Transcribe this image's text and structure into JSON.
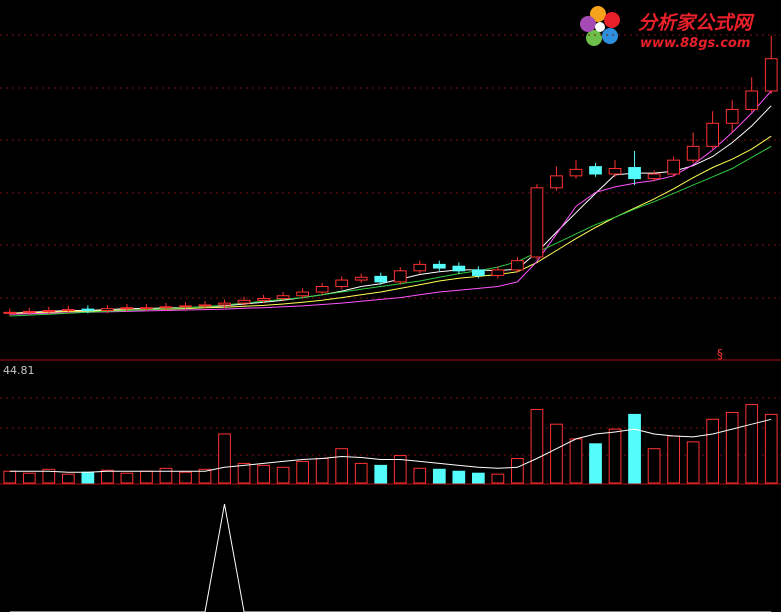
{
  "header": {
    "site": "分析家公式网",
    "url": "www.88gs.com"
  },
  "chart_data": [
    {
      "type": "candlestick",
      "annotation": "§",
      "ylim": [
        0,
        36
      ],
      "grid": true,
      "up_color": "#ff3232",
      "down_color": "#54fcfc",
      "open": [
        2.9,
        3.0,
        3.1,
        3.2,
        3.35,
        3.2,
        3.4,
        3.45,
        3.5,
        3.6,
        3.7,
        3.8,
        4.0,
        4.3,
        4.5,
        4.8,
        5.2,
        5.8,
        6.5,
        6.9,
        6.3,
        7.5,
        8.2,
        8.0,
        7.6,
        7.0,
        7.6,
        9.0,
        16.5,
        17.8,
        18.8,
        18.0,
        18.7,
        17.5,
        18.0,
        19.5,
        21.0,
        23.5,
        25.0,
        27.0
      ],
      "high": [
        3.4,
        3.5,
        3.6,
        3.7,
        3.75,
        3.8,
        3.9,
        3.9,
        4.0,
        4.1,
        4.2,
        4.4,
        4.7,
        4.9,
        5.2,
        5.6,
        6.2,
        6.9,
        7.2,
        7.3,
        7.9,
        8.6,
        8.6,
        8.4,
        8.0,
        8.0,
        9.0,
        16.9,
        18.8,
        19.5,
        19.2,
        19.5,
        20.5,
        18.4,
        19.9,
        22.5,
        24.8,
        26.0,
        28.5,
        33.0
      ],
      "low": [
        2.6,
        2.7,
        2.8,
        2.9,
        2.9,
        2.9,
        3.1,
        3.15,
        3.2,
        3.3,
        3.4,
        3.5,
        3.7,
        4.0,
        4.2,
        4.5,
        4.9,
        5.5,
        6.2,
        6.0,
        6.0,
        7.2,
        7.5,
        7.2,
        6.7,
        6.7,
        7.3,
        8.7,
        16.2,
        17.5,
        17.7,
        17.7,
        16.8,
        17.2,
        17.7,
        19.2,
        20.7,
        22.5,
        24.7,
        26.7
      ],
      "close": [
        3.0,
        3.1,
        3.2,
        3.3,
        3.2,
        3.4,
        3.5,
        3.5,
        3.6,
        3.7,
        3.8,
        4.0,
        4.3,
        4.5,
        4.8,
        5.2,
        5.8,
        6.5,
        6.8,
        6.3,
        7.5,
        8.2,
        7.8,
        7.5,
        7.0,
        7.6,
        8.6,
        16.5,
        17.8,
        18.5,
        18.0,
        18.6,
        17.5,
        18.0,
        19.5,
        21.0,
        23.5,
        25.0,
        27.0,
        30.5
      ],
      "series": [
        {
          "color": "#ffffff",
          "values": [
            2.9,
            3.0,
            3.1,
            3.2,
            3.2,
            3.3,
            3.4,
            3.4,
            3.5,
            3.5,
            3.6,
            3.7,
            3.9,
            4.1,
            4.3,
            4.6,
            4.9,
            5.3,
            5.8,
            6.1,
            6.6,
            7.1,
            7.4,
            7.6,
            7.6,
            7.5,
            7.7,
            9.5,
            11.7,
            13.8,
            15.9,
            17.9,
            18.1,
            18.1,
            18.3,
            18.9,
            19.9,
            21.4,
            23.2,
            25.4
          ]
        },
        {
          "color": "#ffff54",
          "values": [
            2.9,
            2.95,
            3.0,
            3.1,
            3.1,
            3.2,
            3.25,
            3.3,
            3.35,
            3.4,
            3.5,
            3.55,
            3.65,
            3.75,
            3.9,
            4.1,
            4.3,
            4.6,
            4.9,
            5.2,
            5.6,
            6.0,
            6.4,
            6.7,
            6.9,
            7.1,
            7.4,
            8.4,
            9.7,
            11.0,
            12.2,
            13.3,
            14.3,
            15.3,
            16.4,
            17.6,
            18.7,
            19.6,
            20.7,
            22.1
          ]
        },
        {
          "color": "#ff54ff",
          "values": [
            2.8,
            2.85,
            2.9,
            2.95,
            3.0,
            3.05,
            3.1,
            3.15,
            3.2,
            3.25,
            3.3,
            3.35,
            3.45,
            3.5,
            3.6,
            3.7,
            3.85,
            4.0,
            4.2,
            4.4,
            4.6,
            4.9,
            5.2,
            5.4,
            5.6,
            5.8,
            6.3,
            8.5,
            11.5,
            14.5,
            16.0,
            16.6,
            17.0,
            17.3,
            17.8,
            19.0,
            20.6,
            22.5,
            24.6,
            27.0
          ]
        },
        {
          "color": "#2ecc40",
          "values": [
            2.6,
            2.7,
            2.8,
            2.9,
            3.0,
            3.1,
            3.2,
            3.3,
            3.4,
            3.5,
            3.6,
            3.8,
            4.0,
            4.2,
            4.4,
            4.6,
            4.9,
            5.2,
            5.5,
            5.8,
            6.1,
            6.4,
            6.8,
            7.2,
            7.5,
            7.9,
            8.5,
            9.5,
            10.5,
            11.5,
            12.5,
            13.3,
            14.2,
            15.0,
            15.9,
            16.8,
            17.7,
            18.6,
            19.8,
            21.0
          ]
        }
      ]
    },
    {
      "type": "bar",
      "label": "44.81",
      "ylim": [
        0,
        100
      ],
      "grid": true,
      "line_color": "#ffffff",
      "values": [
        12,
        10,
        14,
        9,
        11,
        13,
        10,
        12,
        15,
        11,
        14,
        50,
        20,
        18,
        16,
        22,
        25,
        35,
        20,
        18,
        28,
        15,
        14,
        12,
        10,
        9,
        25,
        75,
        60,
        45,
        40,
        55,
        70,
        35,
        48,
        42,
        65,
        72,
        80,
        70
      ],
      "ma": [
        12,
        12,
        12,
        11,
        11,
        12,
        12,
        12,
        12,
        12,
        12,
        16,
        18,
        20,
        22,
        24,
        25,
        27,
        26,
        24,
        24,
        22,
        20,
        18,
        16,
        15,
        16,
        25,
        35,
        45,
        50,
        52,
        55,
        50,
        48,
        47,
        50,
        55,
        60,
        65
      ]
    },
    {
      "type": "line",
      "ylim": [
        0,
        100
      ],
      "color": "#ffffff",
      "values": [
        0,
        0,
        0,
        0,
        0,
        0,
        0,
        0,
        0,
        0,
        0,
        85,
        0,
        0,
        0,
        0,
        0,
        0,
        0,
        0,
        0,
        0,
        0,
        0,
        0,
        0,
        0,
        0,
        0,
        0,
        0,
        0,
        0,
        0,
        0,
        0,
        0,
        0,
        0,
        0
      ]
    }
  ]
}
